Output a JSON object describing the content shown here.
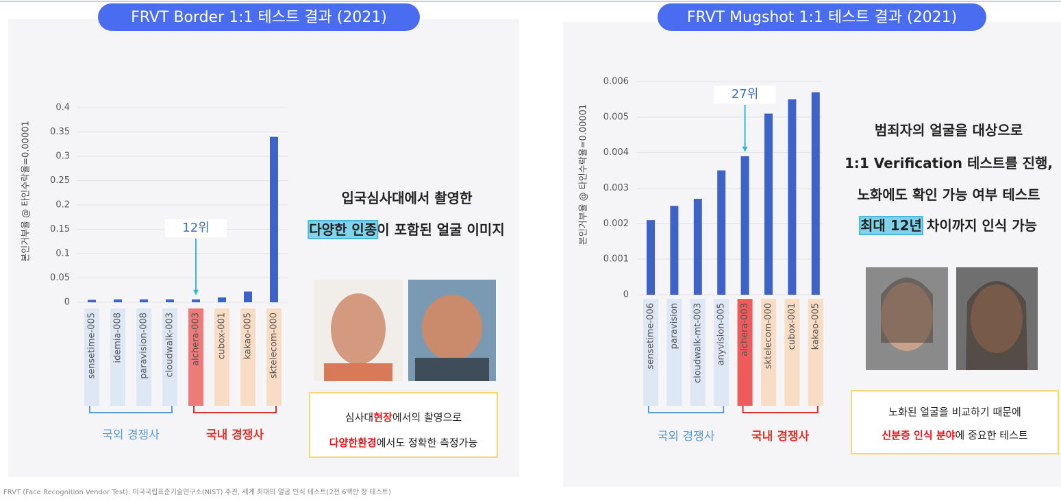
{
  "chart_data": [
    {
      "type": "bar",
      "title": "FRVT Border 1:1 테스트 결과 (2021)",
      "y_label": "본인거부율 @ 타인수락율=0.00001",
      "categories": [
        "sensetime-005",
        "idemia-008",
        "paravision-008",
        "cloudwalk-003",
        "alchera-003",
        "cubox-001",
        "kakao-005",
        "sktelecom-000"
      ],
      "values": [
        0.005,
        0.006,
        0.006,
        0.006,
        0.006,
        0.01,
        0.022,
        0.34
      ],
      "color": "#3d63c9",
      "category_colors": [
        "#dde8f4",
        "#dde8f4",
        "#dde8f4",
        "#dde8f4",
        "#ef7a7a",
        "#f8dcc4",
        "#f8dcc4",
        "#f8dcc4"
      ],
      "ylim": [
        0,
        0.4
      ],
      "yticks": [
        0,
        0.05,
        0.1,
        0.15,
        0.2,
        0.25,
        0.3,
        0.35,
        0.4
      ],
      "grid": true,
      "groups": [
        {
          "label": "국외 경쟁사",
          "color": "#5b9bd5"
        },
        {
          "label": "국내 경쟁사",
          "color": "#d9342b"
        }
      ],
      "annotation": "12위",
      "description": [
        [
          {
            "text": "입국심사대에서 촬영한"
          }
        ],
        [
          {
            "text": "다양한 인종",
            "highlight": true
          },
          {
            "text": "이 포함된 얼굴 이미지"
          }
        ]
      ],
      "callout": [
        [
          {
            "text": "심사대"
          },
          {
            "text": "현장",
            "color": "#e8141c"
          },
          {
            "text": "에서의 촬영으로"
          }
        ],
        [
          {
            "text": "다양한환경",
            "color": "#e8141c"
          },
          {
            "text": "에서도 정확한 측정가능"
          }
        ]
      ]
    },
    {
      "type": "bar",
      "title": "FRVT Mugshot 1:1 테스트 결과 (2021)",
      "y_label": "본인거부율 @ 타인수락율=0.00001",
      "categories": [
        "sensetime-006",
        "paravision",
        "cloudwalk-mt-003",
        "anyvision-005",
        "alchera-003",
        "sktelecom-000",
        "cubox-001",
        "kakao-005"
      ],
      "values": [
        0.0021,
        0.0025,
        0.0027,
        0.0035,
        0.0039,
        0.0051,
        0.0055,
        0.0057
      ],
      "color": "#3d63c9",
      "category_colors": [
        "#dde8f4",
        "#dde8f4",
        "#dde8f4",
        "#dde8f4",
        "#ef5a5a",
        "#f8dcc4",
        "#f8dcc4",
        "#f8dcc4"
      ],
      "ylim": [
        0,
        0.006
      ],
      "yticks": [
        0,
        0.001,
        0.002,
        0.003,
        0.004,
        0.005,
        0.006
      ],
      "grid": true,
      "groups": [
        {
          "label": "국외 경쟁사",
          "color": "#5b9bd5"
        },
        {
          "label": "국내 경쟁사",
          "color": "#d9342b"
        }
      ],
      "annotation": "27위",
      "description": [
        [
          {
            "text": "범죄자의 얼굴을 대상으로"
          }
        ],
        [
          {
            "text": "1:1 Verification 테스트를 진행,"
          }
        ],
        [
          {
            "text": "노화에도 확인 가능 여부 테스트"
          }
        ],
        [
          {
            "text": "최대 12년",
            "highlight": true
          },
          {
            "text": " 차이까지 인식 가능"
          }
        ]
      ],
      "callout": [
        [
          {
            "text": "노화된 얼굴을 비교하기 때문에"
          }
        ],
        [
          {
            "text": "신분증 인식 분야",
            "color": "#e8141c"
          },
          {
            "text": "에 중요한 테스트"
          }
        ]
      ]
    }
  ],
  "footnote": "FRVT (Face Recognition Vendor Test): 미국국립표준기술연구소(NIST) 주관, 세계 최대의 얼굴 인식 테스트(2천 6백만 장 테스트)"
}
